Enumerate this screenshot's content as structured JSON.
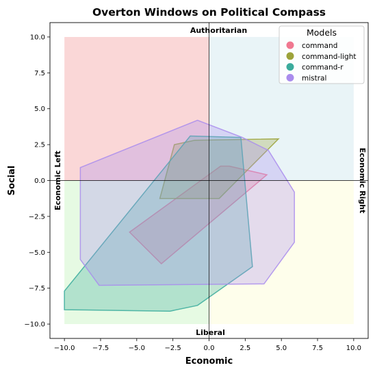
{
  "chart_data": {
    "type": "area",
    "title": "Overton Windows on Political Compass",
    "xlabel": "Economic",
    "ylabel": "Social",
    "xlim": [
      -11,
      11
    ],
    "ylim": [
      -11,
      11
    ],
    "xticks": [
      -10.0,
      -7.5,
      -5.0,
      -2.5,
      0.0,
      2.5,
      5.0,
      7.5,
      10.0
    ],
    "yticks": [
      -10.0,
      -7.5,
      -5.0,
      -2.5,
      0.0,
      2.5,
      5.0,
      7.5,
      10.0
    ],
    "tick_labels": [
      "−10.0",
      "−7.5",
      "−5.0",
      "−2.5",
      "0.0",
      "2.5",
      "5.0",
      "7.5",
      "10.0"
    ],
    "grid": false,
    "quadrants": [
      {
        "x": [
          -10,
          0
        ],
        "y": [
          0,
          10
        ],
        "color": "#f4a6a6"
      },
      {
        "x": [
          0,
          10
        ],
        "y": [
          0,
          10
        ],
        "color": "#cfe6ee"
      },
      {
        "x": [
          -10,
          0
        ],
        "y": [
          -10,
          0
        ],
        "color": "#c8f5c0"
      },
      {
        "x": [
          0,
          10
        ],
        "y": [
          -10,
          0
        ],
        "color": "#fdfdd2"
      }
    ],
    "quadrant_labels": {
      "top": "Authoritarian",
      "bottom": "Liberal",
      "left": "Economic Left",
      "right": "Economic Right"
    },
    "legend": {
      "title": "Models",
      "position": "top-right"
    },
    "series": [
      {
        "name": "command",
        "color": "#f07890",
        "points": [
          [
            -5.5,
            -3.6
          ],
          [
            0.8,
            1.0
          ],
          [
            1.4,
            1.0
          ],
          [
            4.0,
            0.4
          ],
          [
            -3.3,
            -5.8
          ]
        ]
      },
      {
        "name": "command-light",
        "color": "#9ca33a",
        "points": [
          [
            -2.4,
            2.5
          ],
          [
            -1.0,
            2.8
          ],
          [
            4.8,
            2.9
          ],
          [
            0.7,
            -1.25
          ],
          [
            -3.4,
            -1.25
          ]
        ]
      },
      {
        "name": "command-r",
        "color": "#3aab9c",
        "points": [
          [
            -1.3,
            3.1
          ],
          [
            2.2,
            3.0
          ],
          [
            3.0,
            -6.0
          ],
          [
            -0.8,
            -8.7
          ],
          [
            -2.7,
            -9.1
          ],
          [
            -10.0,
            -9.0
          ],
          [
            -10.0,
            -7.7
          ]
        ]
      },
      {
        "name": "mistral",
        "color": "#a98ced",
        "points": [
          [
            -8.9,
            0.9
          ],
          [
            -0.8,
            4.2
          ],
          [
            2.3,
            3.0
          ],
          [
            4.1,
            2.1
          ],
          [
            5.9,
            -0.8
          ],
          [
            5.9,
            -4.3
          ],
          [
            3.8,
            -7.2
          ],
          [
            -7.6,
            -7.3
          ],
          [
            -8.9,
            -5.5
          ]
        ]
      }
    ]
  }
}
